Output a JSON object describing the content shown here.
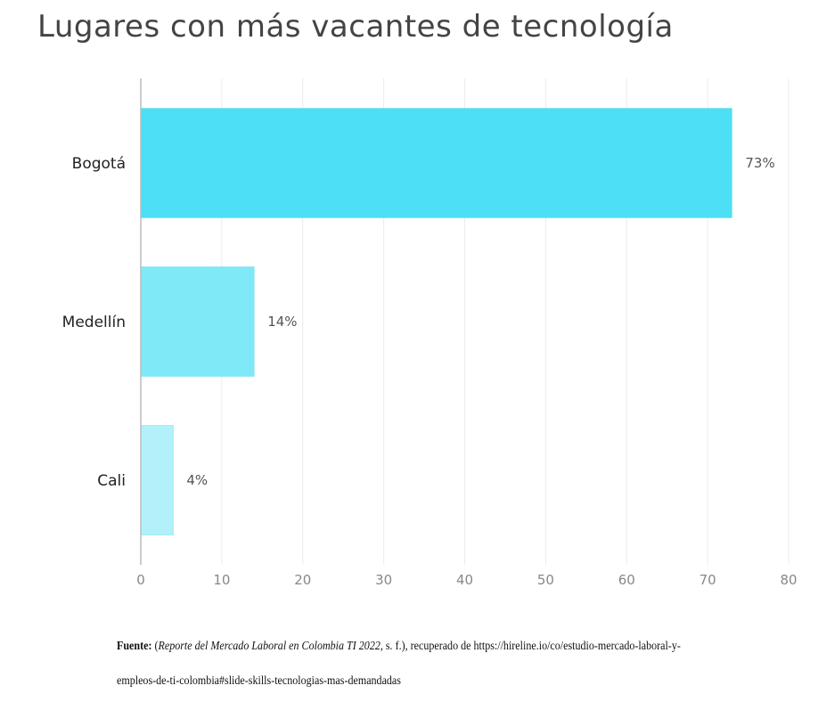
{
  "chart_data": {
    "type": "bar",
    "orientation": "horizontal",
    "title": "Lugares con más vacantes de tecnología",
    "categories": [
      "Bogotá",
      "Medellín",
      "Cali"
    ],
    "values": [
      73,
      14,
      4
    ],
    "value_labels": [
      "73%",
      "14%",
      "4%"
    ],
    "colors": [
      "#4cdff6",
      "#80e9f7",
      "#b2f1fa"
    ],
    "xlim": [
      0,
      80
    ],
    "xticks": [
      0,
      10,
      20,
      30,
      40,
      50,
      60,
      70,
      80
    ],
    "xtick_labels": [
      "0",
      "10",
      "20",
      "30",
      "40",
      "50",
      "60",
      "70",
      "80"
    ],
    "xlabel": "",
    "ylabel": "",
    "grid": true
  },
  "source": {
    "label": "Fuente:",
    "open_paren": " (",
    "title_italic": "Reporte del Mercado Laboral en Colombia TI 2022",
    "rest": ", s. f.), recuperado de https://hireline.io/co/estudio-mercado-laboral-y-empleos-de-ti-colombia#slide-skills-tecnologias-mas-demandadas"
  }
}
